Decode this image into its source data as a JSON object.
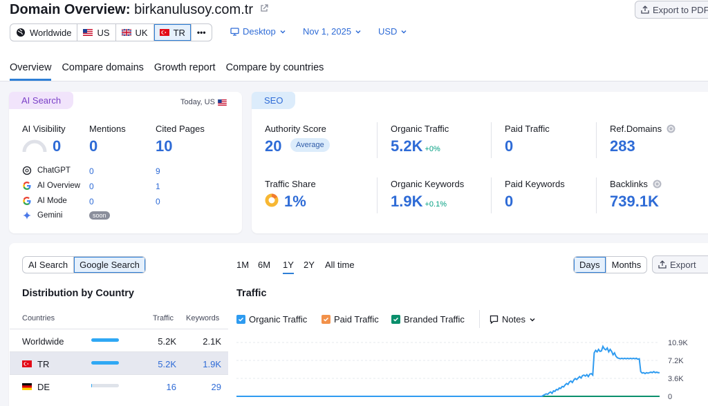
{
  "header": {
    "title_prefix": "Domain Overview:",
    "domain": "birkanulusoy.com.tr",
    "export_pdf": "Export to PDF",
    "databases": [
      {
        "label": "Worldwide"
      },
      {
        "label": "US"
      },
      {
        "label": "UK"
      },
      {
        "label": "TR"
      }
    ],
    "more": "•••",
    "device": "Desktop",
    "date": "Nov 1, 2025",
    "currency": "USD"
  },
  "tabs": [
    "Overview",
    "Compare domains",
    "Growth report",
    "Compare by countries"
  ],
  "ai_search": {
    "pill": "AI Search",
    "date_note": "Today, US",
    "metrics": [
      {
        "label": "AI Visibility",
        "value": "0"
      },
      {
        "label": "Mentions",
        "value": "0"
      },
      {
        "label": "Cited Pages",
        "value": "10"
      }
    ],
    "sources": [
      {
        "name": "ChatGPT",
        "mentions": "0",
        "cited": "9"
      },
      {
        "name": "AI Overview",
        "mentions": "0",
        "cited": "1"
      },
      {
        "name": "AI Mode",
        "mentions": "0",
        "cited": "0"
      },
      {
        "name": "Gemini",
        "badge": "soon"
      }
    ]
  },
  "seo": {
    "pill": "SEO",
    "authority_score": {
      "label": "Authority Score",
      "value": "20",
      "badge": "Average"
    },
    "organic_traffic": {
      "label": "Organic Traffic",
      "value": "5.2K",
      "delta": "+0%"
    },
    "paid_traffic": {
      "label": "Paid Traffic",
      "value": "0"
    },
    "ref_domains": {
      "label": "Ref.Domains",
      "value": "283"
    },
    "traffic_share": {
      "label": "Traffic Share",
      "value": "1%"
    },
    "organic_keywords": {
      "label": "Organic Keywords",
      "value": "1.9K",
      "delta": "+0.1%"
    },
    "paid_keywords": {
      "label": "Paid Keywords",
      "value": "0"
    },
    "backlinks": {
      "label": "Backlinks",
      "value": "739.1K"
    }
  },
  "distribution": {
    "toggle": [
      "AI Search",
      "Google Search"
    ],
    "title": "Distribution by Country",
    "columns": [
      "Countries",
      "Traffic",
      "Keywords"
    ],
    "rows": [
      {
        "country": "Worldwide",
        "traffic": "5.2K",
        "keywords": "2.1K",
        "share": 1.0
      },
      {
        "country": "TR",
        "traffic": "5.2K",
        "keywords": "1.9K",
        "share": 0.99
      },
      {
        "country": "DE",
        "traffic": "16",
        "keywords": "29",
        "share": 0.01
      }
    ]
  },
  "traffic": {
    "periods": [
      "1M",
      "6M",
      "1Y",
      "2Y",
      "All time"
    ],
    "active_period": "1Y",
    "granularity": [
      "Days",
      "Months"
    ],
    "export": "Export",
    "title": "Traffic",
    "legend": [
      {
        "label": "Organic Traffic",
        "color": "#2e9bf0",
        "checked": true
      },
      {
        "label": "Paid Traffic",
        "color": "#f2914a",
        "checked": true
      },
      {
        "label": "Branded Traffic",
        "color": "#0a8f6c",
        "checked": true
      }
    ],
    "notes": "Notes",
    "y_ticks": [
      "10.9K",
      "7.2K",
      "3.6K",
      "0"
    ]
  },
  "chart_data": {
    "type": "line",
    "ylim": [
      0,
      10900
    ],
    "series": [
      {
        "name": "Organic Traffic",
        "values": [
          0,
          0,
          0,
          0,
          0,
          0,
          0,
          0,
          0,
          0,
          0,
          0,
          0,
          0,
          0,
          0,
          0,
          0,
          0,
          0,
          0,
          0,
          0,
          0,
          0,
          0,
          0,
          0,
          0,
          0,
          0,
          0,
          0,
          0,
          0,
          0,
          0,
          0,
          0,
          0,
          0,
          0,
          0,
          0,
          0,
          0,
          0,
          0,
          0,
          0,
          0,
          0,
          0,
          0,
          0,
          0,
          0,
          0,
          0,
          0,
          0,
          0,
          0,
          0,
          0,
          0,
          0,
          0,
          0,
          0,
          0,
          0,
          0,
          0,
          0,
          0,
          0,
          0,
          0,
          0,
          0,
          0,
          0,
          0,
          0,
          0,
          0,
          0,
          0,
          0,
          0,
          0,
          0,
          0,
          0,
          0,
          0,
          0,
          0,
          0,
          0,
          0,
          0,
          0,
          0,
          0,
          0,
          0,
          0,
          0,
          0,
          0,
          0,
          0,
          0,
          0,
          0,
          0,
          0,
          0,
          0,
          0,
          0,
          0,
          0,
          0,
          0,
          0,
          0,
          0,
          0,
          0,
          0,
          0,
          0,
          0,
          0,
          0,
          0,
          0,
          0,
          0,
          0,
          0,
          0,
          0,
          0,
          0,
          0,
          0,
          0,
          0,
          0,
          0,
          0,
          0,
          0,
          0,
          0,
          0,
          0,
          0,
          0,
          0,
          0,
          0,
          0,
          0,
          0,
          0,
          0,
          0,
          0,
          0,
          0,
          0,
          0,
          0,
          0,
          0,
          0,
          0,
          0,
          0,
          0,
          0,
          0,
          0,
          0,
          0,
          0,
          0,
          0,
          0,
          0,
          0,
          0,
          0,
          0,
          0,
          0,
          0,
          0,
          0,
          0,
          0,
          0,
          0,
          0,
          0,
          0,
          200,
          350,
          500,
          400,
          700,
          900,
          600,
          1100,
          1000,
          1400,
          1300,
          1700,
          1600,
          2000,
          1900,
          2300,
          2600,
          2400,
          2900,
          3100,
          2800,
          3300,
          3600,
          3400,
          3700,
          4000,
          3700,
          4200,
          4300,
          4100,
          4400,
          4000,
          4500,
          4600,
          4300,
          8800,
          9300,
          9000,
          9500,
          9100,
          9200,
          10100,
          9600,
          9400,
          9800,
          9000,
          9500,
          9100,
          8400,
          8800,
          8100,
          7800,
          7700,
          7600,
          7700,
          7600,
          7700,
          7600,
          7700,
          7600,
          7700,
          7600,
          7700,
          7600,
          7700,
          7500,
          7600,
          5000,
          4700,
          4800,
          4600,
          4800,
          4700,
          4800,
          4900,
          4800,
          5000,
          4800,
          4900,
          4800,
          4800
        ]
      },
      {
        "name": "Branded Traffic",
        "values": [
          0
        ]
      }
    ]
  }
}
